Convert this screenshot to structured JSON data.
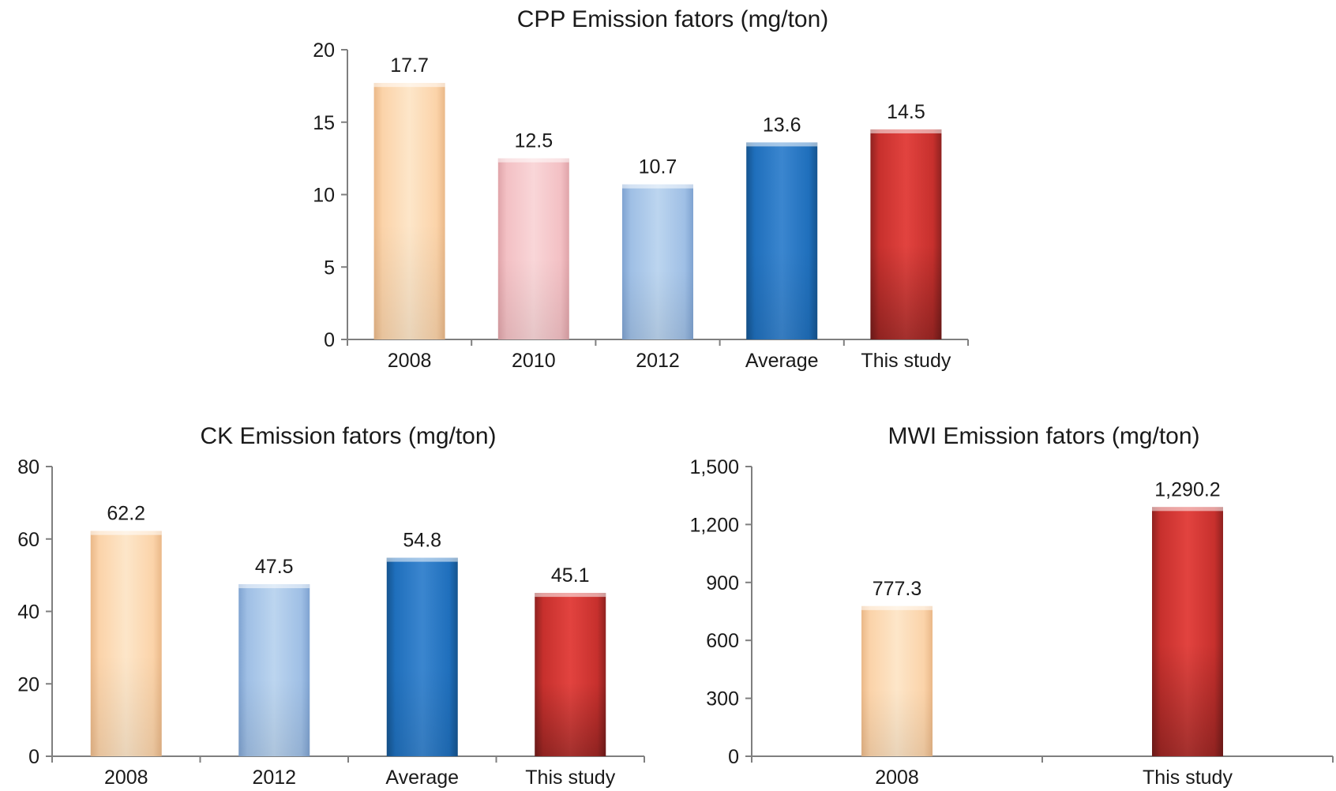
{
  "chart_data": [
    {
      "type": "bar",
      "title": "CPP Emission fators (mg/ton)",
      "categories": [
        "2008",
        "2010",
        "2012",
        "Average",
        "This study"
      ],
      "values": [
        17.7,
        12.5,
        10.7,
        13.6,
        14.5
      ],
      "value_labels": [
        "17.7",
        "12.5",
        "10.7",
        "13.6",
        "14.5"
      ],
      "bar_colors": [
        "peach",
        "pink",
        "light-blue",
        "blue",
        "red"
      ],
      "ylim": [
        0,
        20
      ],
      "yticks": [
        0,
        5,
        10,
        15,
        20
      ],
      "ytick_labels": [
        "0",
        "5",
        "10",
        "15",
        "20"
      ],
      "xlabel": "",
      "ylabel": "",
      "grid": false
    },
    {
      "type": "bar",
      "title": "CK Emission fators (mg/ton)",
      "categories": [
        "2008",
        "2012",
        "Average",
        "This study"
      ],
      "values": [
        62.2,
        47.5,
        54.8,
        45.1
      ],
      "value_labels": [
        "62.2",
        "47.5",
        "54.8",
        "45.1"
      ],
      "bar_colors": [
        "peach",
        "light-blue",
        "blue",
        "red"
      ],
      "ylim": [
        0,
        80
      ],
      "yticks": [
        0,
        20,
        40,
        60,
        80
      ],
      "ytick_labels": [
        "0",
        "20",
        "40",
        "60",
        "80"
      ],
      "xlabel": "",
      "ylabel": "",
      "grid": false
    },
    {
      "type": "bar",
      "title": "MWI Emission fators (mg/ton)",
      "categories": [
        "2008",
        "This study"
      ],
      "values": [
        777.3,
        1290.2
      ],
      "value_labels": [
        "777.3",
        "1,290.2"
      ],
      "bar_colors": [
        "peach",
        "red"
      ],
      "ylim": [
        0,
        1500
      ],
      "yticks": [
        0,
        300,
        600,
        900,
        1200,
        1500
      ],
      "ytick_labels": [
        "0",
        "300",
        "600",
        "900",
        "1,200",
        "1,500"
      ],
      "xlabel": "",
      "ylabel": "",
      "grid": false
    }
  ],
  "colors": {
    "peach": {
      "light": "#fde6c9",
      "mid": "#fbd3a9",
      "dark": "#eab888"
    },
    "pink": {
      "light": "#f9d6d8",
      "mid": "#f3c0c4",
      "dark": "#e0a4a9"
    },
    "light-blue": {
      "light": "#bcd5ef",
      "mid": "#9fbfe5",
      "dark": "#7fa3d1"
    },
    "blue": {
      "light": "#3b86cf",
      "mid": "#1f6fbc",
      "dark": "#15548f"
    },
    "red": {
      "light": "#e2433f",
      "mid": "#c7302d",
      "dark": "#8f2220"
    },
    "axis": "#7f7f7f"
  }
}
